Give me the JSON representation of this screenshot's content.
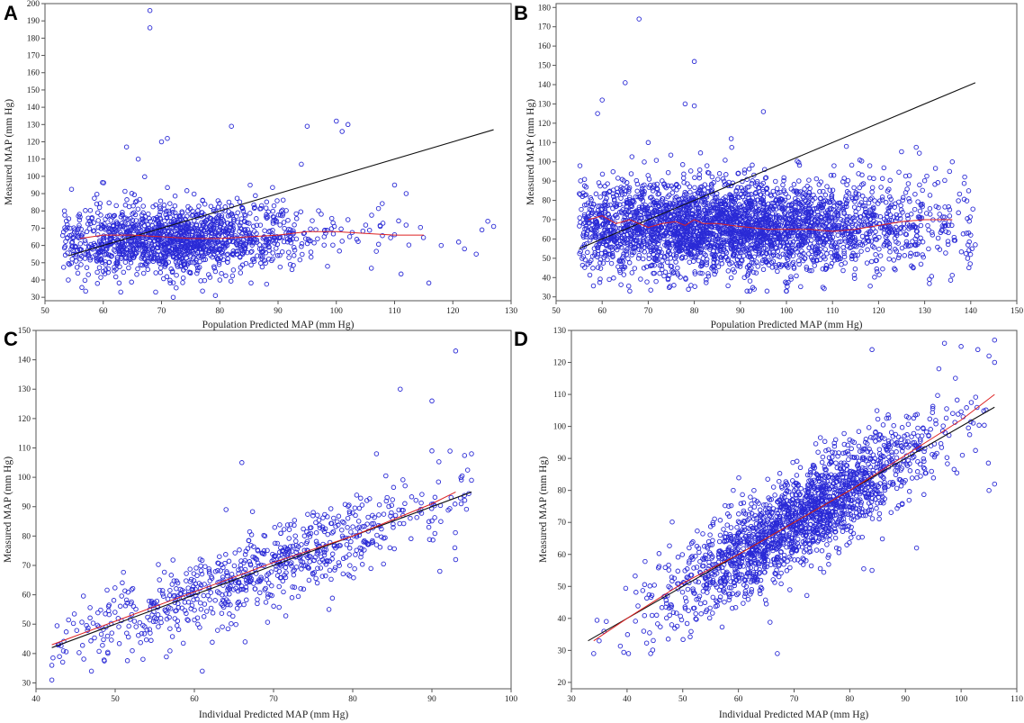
{
  "figure": {
    "title": ""
  },
  "chart_data": [
    {
      "panel": "A",
      "type": "scatter",
      "xlabel": "Population Predicted MAP (mm Hg)",
      "ylabel": "Measured MAP (mm Hg)",
      "xlim": [
        50,
        130
      ],
      "ylim": [
        28,
        200
      ],
      "xticks": [
        50,
        60,
        70,
        80,
        90,
        100,
        110,
        120,
        130
      ],
      "yticks": [
        30,
        40,
        50,
        60,
        70,
        80,
        90,
        100,
        110,
        120,
        130,
        140,
        150,
        160,
        170,
        180,
        190,
        200
      ],
      "cloud": {
        "n": 1500,
        "x_center": 72,
        "x_spread": 11,
        "x_min": 53,
        "x_max": 116,
        "y_mean": 64,
        "y_slope": 0.04,
        "y_sd": 10,
        "y_min": 30,
        "y_max": 120
      },
      "points": [
        [
          68,
          196
        ],
        [
          68,
          186
        ],
        [
          82,
          129
        ],
        [
          95,
          129
        ],
        [
          100,
          132
        ],
        [
          102,
          130
        ],
        [
          101,
          126
        ],
        [
          71,
          122
        ],
        [
          70,
          120
        ],
        [
          118,
          60
        ],
        [
          122,
          58
        ],
        [
          125,
          69
        ],
        [
          126,
          74
        ],
        [
          124,
          55
        ],
        [
          121,
          62
        ],
        [
          127,
          71
        ],
        [
          94,
          107
        ],
        [
          64,
          117
        ],
        [
          66,
          110
        ],
        [
          59,
          38
        ],
        [
          63,
          33
        ],
        [
          72,
          30
        ],
        [
          69,
          33
        ],
        [
          80,
          40
        ],
        [
          54,
          40
        ],
        [
          110,
          95
        ],
        [
          112,
          90
        ]
      ],
      "identity_line": [
        [
          54,
          54
        ],
        [
          127,
          127
        ]
      ],
      "smooth_line": {
        "x": [
          56,
          60,
          65,
          70,
          75,
          80,
          85,
          90,
          95,
          100,
          105,
          110,
          115
        ],
        "y": [
          64,
          66,
          66,
          65,
          64,
          64,
          65,
          66,
          68,
          68,
          67,
          66,
          66
        ]
      }
    },
    {
      "panel": "B",
      "type": "scatter",
      "xlabel": "Population Predicted MAP (mm Hg)",
      "ylabel": "Measured MAP (mm Hg)",
      "xlim": [
        50,
        150
      ],
      "ylim": [
        28,
        182
      ],
      "xticks": [
        50,
        60,
        70,
        80,
        90,
        100,
        110,
        120,
        130,
        140,
        150
      ],
      "yticks": [
        30,
        40,
        50,
        60,
        70,
        80,
        90,
        100,
        110,
        120,
        130,
        140,
        150,
        160,
        170,
        180
      ],
      "cloud": {
        "n": 3200,
        "x_center": 85,
        "x_spread": 22,
        "x_min": 55,
        "x_max": 141,
        "y_mean": 66,
        "y_slope": 0.02,
        "y_sd": 12,
        "y_min": 33,
        "y_max": 125
      },
      "points": [
        [
          68,
          174
        ],
        [
          80,
          152
        ],
        [
          65,
          141
        ],
        [
          60,
          132
        ],
        [
          59,
          125
        ],
        [
          95,
          126
        ],
        [
          113,
          108
        ],
        [
          136,
          100
        ],
        [
          141,
          57
        ],
        [
          140,
          62
        ],
        [
          78,
          130
        ],
        [
          80,
          129
        ],
        [
          66,
          33
        ],
        [
          93,
          34
        ],
        [
          100,
          37
        ],
        [
          70,
          110
        ],
        [
          88,
          112
        ]
      ],
      "identity_line": [
        [
          55,
          55
        ],
        [
          141,
          141
        ]
      ],
      "smooth_line": {
        "x": [
          57,
          60,
          63,
          66,
          70,
          73,
          76,
          78,
          80,
          82,
          85,
          88,
          92,
          96,
          100,
          105,
          110,
          115,
          120,
          125,
          130,
          136
        ],
        "y": [
          70,
          72,
          68,
          70,
          66,
          68,
          69,
          67,
          70,
          68,
          68,
          67,
          66,
          65,
          65,
          65,
          64,
          65,
          67,
          69,
          70,
          70
        ]
      }
    },
    {
      "panel": "C",
      "type": "scatter",
      "xlabel": "Individual Predicted MAP (mm Hg)",
      "ylabel": "Measured MAP (mm Hg)",
      "xlim": [
        40,
        100
      ],
      "ylim": [
        28,
        150
      ],
      "xticks": [
        40,
        50,
        60,
        70,
        80,
        90,
        100
      ],
      "yticks": [
        30,
        40,
        50,
        60,
        70,
        80,
        90,
        100,
        110,
        120,
        130,
        140,
        150
      ],
      "cloud": {
        "n": 750,
        "x_center": 68,
        "x_spread": 13,
        "x_min": 42,
        "x_max": 95,
        "intercept": 0,
        "slope": 1.0,
        "y_sd": 6.5,
        "y_min": 31,
        "y_max": 115
      },
      "points": [
        [
          93,
          143
        ],
        [
          86,
          130
        ],
        [
          90,
          126
        ],
        [
          66,
          105
        ],
        [
          90,
          109
        ],
        [
          95,
          108
        ],
        [
          83,
          108
        ],
        [
          95,
          99
        ],
        [
          42,
          31
        ],
        [
          42,
          36
        ],
        [
          61,
          34
        ],
        [
          47,
          34
        ],
        [
          64,
          89
        ],
        [
          91,
          68
        ],
        [
          93,
          72
        ],
        [
          77,
          55
        ]
      ],
      "identity_line": [
        [
          42,
          42
        ],
        [
          95,
          95
        ]
      ],
      "smooth_line": {
        "x": [
          42,
          50,
          60,
          70,
          80,
          90,
          93
        ],
        "y": [
          43,
          51,
          61,
          71,
          80,
          91,
          95
        ]
      }
    },
    {
      "panel": "D",
      "type": "scatter",
      "xlabel": "Individual Predicted MAP (mm Hg)",
      "ylabel": "Measured MAP (mm Hg)",
      "xlim": [
        30,
        110
      ],
      "ylim": [
        18,
        130
      ],
      "xticks": [
        30,
        40,
        50,
        60,
        70,
        80,
        90,
        100,
        110
      ],
      "yticks": [
        20,
        30,
        40,
        50,
        60,
        70,
        80,
        90,
        100,
        110,
        120,
        130
      ],
      "cloud": {
        "n": 1900,
        "x_center": 71,
        "x_spread": 12,
        "x_min": 34,
        "x_max": 106,
        "intercept": 0,
        "slope": 1.0,
        "y_sd": 7.5,
        "y_min": 29,
        "y_max": 127
      },
      "points": [
        [
          84,
          124
        ],
        [
          97,
          126
        ],
        [
          106,
          127
        ],
        [
          100,
          125
        ],
        [
          103,
          124
        ],
        [
          105,
          122
        ],
        [
          106,
          120
        ],
        [
          96,
          118
        ],
        [
          106,
          82
        ],
        [
          105,
          80
        ],
        [
          67,
          29
        ],
        [
          92,
          62
        ],
        [
          34,
          29
        ],
        [
          35,
          33
        ],
        [
          43,
          36
        ],
        [
          84,
          55
        ]
      ],
      "identity_line": [
        [
          33,
          33
        ],
        [
          106,
          106
        ]
      ],
      "smooth_line": {
        "x": [
          34,
          40,
          50,
          60,
          70,
          80,
          90,
          100,
          106
        ],
        "y": [
          33,
          40,
          51,
          60,
          70,
          80,
          91,
          102,
          110
        ]
      }
    }
  ]
}
